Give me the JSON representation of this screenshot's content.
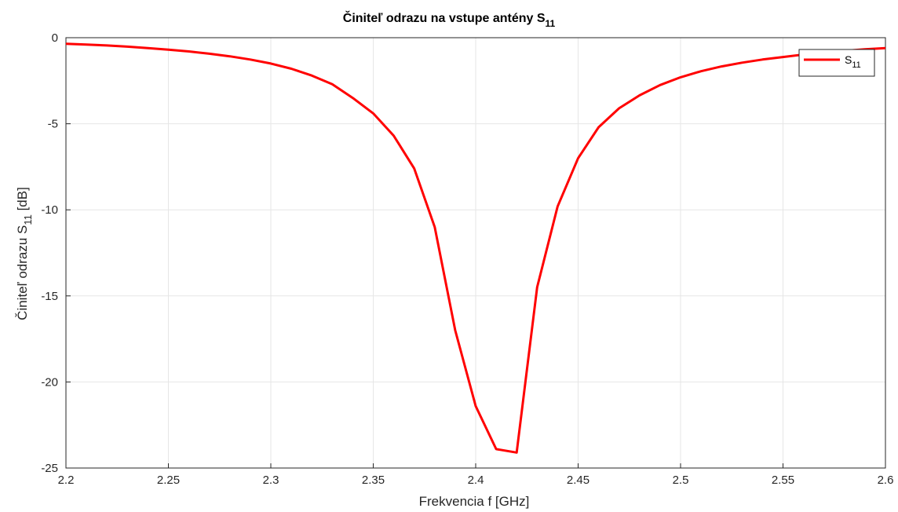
{
  "chart_data": {
    "type": "line",
    "title": "Činiteľ odrazu na vstupe antény ",
    "title_sub": "S",
    "title_subscript": "11",
    "xlabel": "Frekvencia f [GHz]",
    "ylabel_main": "Činiteľ odrazu S",
    "ylabel_subscript": "11",
    "ylabel_unit": " [dB]",
    "xlim": [
      2.2,
      2.6
    ],
    "ylim": [
      -25,
      0
    ],
    "x_ticks": [
      "2.2",
      "2.25",
      "2.3",
      "2.35",
      "2.4",
      "2.45",
      "2.5",
      "2.55",
      "2.6"
    ],
    "y_ticks": [
      "0",
      "-5",
      "-10",
      "-15",
      "-20",
      "-25"
    ],
    "grid": true,
    "legend_position": "top-right",
    "series": [
      {
        "name": "S",
        "name_subscript": "11",
        "color": "#ff0000",
        "x": [
          2.2,
          2.21,
          2.22,
          2.23,
          2.24,
          2.25,
          2.26,
          2.27,
          2.28,
          2.29,
          2.3,
          2.31,
          2.32,
          2.33,
          2.34,
          2.35,
          2.36,
          2.37,
          2.38,
          2.39,
          2.4,
          2.41,
          2.42,
          2.43,
          2.44,
          2.45,
          2.46,
          2.47,
          2.48,
          2.49,
          2.5,
          2.51,
          2.52,
          2.53,
          2.54,
          2.55,
          2.56,
          2.57,
          2.58,
          2.59,
          2.6
        ],
        "y": [
          -0.35,
          -0.4,
          -0.45,
          -0.52,
          -0.6,
          -0.7,
          -0.8,
          -0.93,
          -1.08,
          -1.27,
          -1.5,
          -1.8,
          -2.2,
          -2.7,
          -3.5,
          -4.4,
          -5.7,
          -7.6,
          -11.0,
          -17.0,
          -21.4,
          -23.9,
          -24.1,
          -14.5,
          -9.8,
          -7.0,
          -5.2,
          -4.1,
          -3.35,
          -2.75,
          -2.3,
          -1.95,
          -1.67,
          -1.45,
          -1.27,
          -1.12,
          -0.98,
          -0.86,
          -0.76,
          -0.67,
          -0.6
        ]
      }
    ]
  }
}
